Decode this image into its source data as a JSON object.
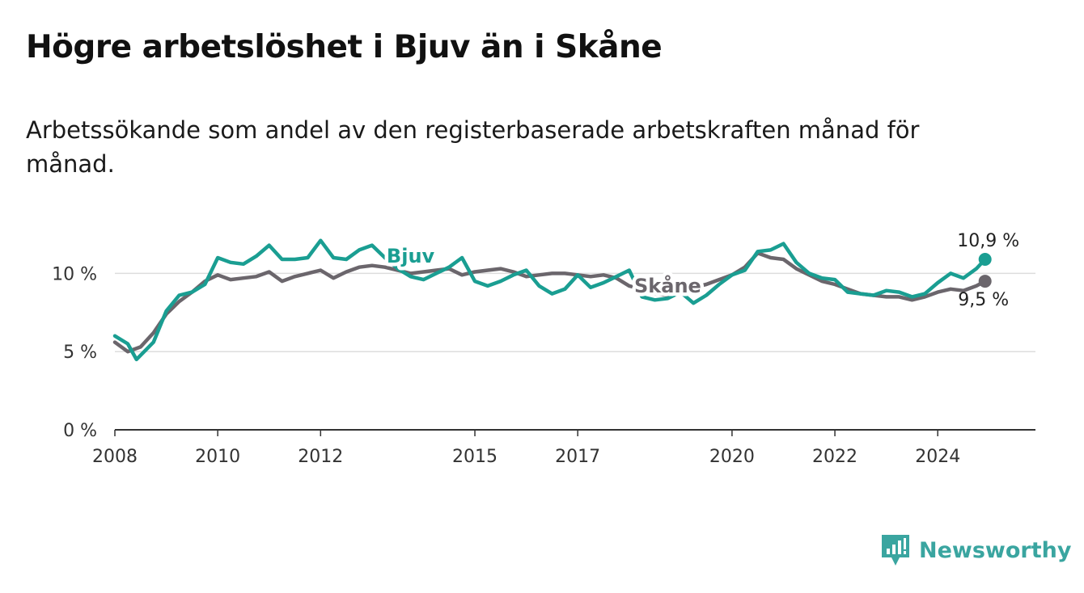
{
  "title": "Högre arbetslöshet i Bjuv än i Skåne",
  "subtitle": "Arbetssökande som andel av den registerbaserade arbetskraften månad för månad.",
  "brand": "Newsworthy",
  "colors": {
    "bjuv": "#1a9e92",
    "skane": "#6b666c",
    "grid": "#dddddd",
    "axis": "#333333",
    "brand": "#3aa5a0"
  },
  "chart_data": {
    "type": "line",
    "x_unit": "year",
    "xlim": [
      2008,
      2025.9
    ],
    "ylim": [
      0,
      12.5
    ],
    "y_ticks": [
      0,
      5,
      10
    ],
    "y_tick_labels": [
      "0 %",
      "5 %",
      "10 %"
    ],
    "x_ticks": [
      2008,
      2010,
      2012,
      2015,
      2017,
      2020,
      2022,
      2024
    ],
    "x_tick_labels": [
      "2008",
      "2010",
      "2012",
      "2015",
      "2017",
      "2020",
      "2022",
      "2024"
    ],
    "grid": true,
    "series": [
      {
        "name": "Skåne",
        "end_label": "9,5 %",
        "x": [
          2008.0,
          2008.25,
          2008.5,
          2008.75,
          2009.0,
          2009.25,
          2009.5,
          2009.75,
          2010.0,
          2010.25,
          2010.5,
          2010.75,
          2011.0,
          2011.25,
          2011.5,
          2011.75,
          2012.0,
          2012.25,
          2012.5,
          2012.75,
          2013.0,
          2013.25,
          2013.5,
          2013.75,
          2014.0,
          2014.25,
          2014.5,
          2014.75,
          2015.0,
          2015.25,
          2015.5,
          2015.75,
          2016.0,
          2016.25,
          2016.5,
          2016.75,
          2017.0,
          2017.25,
          2017.5,
          2017.75,
          2018.0,
          2018.25,
          2018.5,
          2018.75,
          2019.0,
          2019.25,
          2019.5,
          2019.75,
          2020.0,
          2020.25,
          2020.5,
          2020.75,
          2021.0,
          2021.25,
          2021.5,
          2021.75,
          2022.0,
          2022.25,
          2022.5,
          2022.75,
          2023.0,
          2023.25,
          2023.5,
          2023.75,
          2024.0,
          2024.25,
          2024.5,
          2024.75,
          2024.92
        ],
        "values": [
          5.6,
          5.0,
          5.3,
          6.2,
          7.4,
          8.2,
          8.8,
          9.5,
          9.9,
          9.6,
          9.7,
          9.8,
          10.1,
          9.5,
          9.8,
          10.0,
          10.2,
          9.7,
          10.1,
          10.4,
          10.5,
          10.4,
          10.2,
          10.0,
          10.1,
          10.2,
          10.3,
          9.9,
          10.1,
          10.2,
          10.3,
          10.1,
          9.8,
          9.9,
          10.0,
          10.0,
          9.9,
          9.8,
          9.9,
          9.7,
          9.2,
          9.0,
          8.7,
          8.6,
          8.7,
          9.1,
          9.3,
          9.6,
          9.9,
          10.4,
          11.3,
          11.0,
          10.9,
          10.3,
          9.9,
          9.5,
          9.3,
          9.0,
          8.7,
          8.6,
          8.5,
          8.5,
          8.3,
          8.5,
          8.8,
          9.0,
          8.9,
          9.2,
          9.5
        ]
      },
      {
        "name": "Bjuv",
        "end_label": "10,9 %",
        "x": [
          2008.0,
          2008.25,
          2008.42,
          2008.75,
          2009.0,
          2009.25,
          2009.5,
          2009.75,
          2010.0,
          2010.25,
          2010.5,
          2010.75,
          2011.0,
          2011.25,
          2011.5,
          2011.75,
          2012.0,
          2012.25,
          2012.5,
          2012.75,
          2013.0,
          2013.25,
          2013.5,
          2013.75,
          2014.0,
          2014.25,
          2014.5,
          2014.75,
          2015.0,
          2015.25,
          2015.5,
          2015.75,
          2016.0,
          2016.25,
          2016.5,
          2016.75,
          2017.0,
          2017.25,
          2017.5,
          2017.75,
          2018.0,
          2018.25,
          2018.5,
          2018.75,
          2019.0,
          2019.25,
          2019.5,
          2019.75,
          2020.0,
          2020.25,
          2020.5,
          2020.75,
          2021.0,
          2021.25,
          2021.5,
          2021.75,
          2022.0,
          2022.25,
          2022.5,
          2022.75,
          2023.0,
          2023.25,
          2023.5,
          2023.75,
          2024.0,
          2024.25,
          2024.5,
          2024.75,
          2024.92
        ],
        "values": [
          6.0,
          5.5,
          4.5,
          5.6,
          7.6,
          8.6,
          8.8,
          9.3,
          11.0,
          10.7,
          10.6,
          11.1,
          11.8,
          10.9,
          10.9,
          11.0,
          12.1,
          11.0,
          10.9,
          11.5,
          11.8,
          11.0,
          10.3,
          9.8,
          9.6,
          10.0,
          10.4,
          11.0,
          9.5,
          9.2,
          9.5,
          9.9,
          10.2,
          9.2,
          8.7,
          9.0,
          9.9,
          9.1,
          9.4,
          9.8,
          10.2,
          8.5,
          8.3,
          8.4,
          8.8,
          8.1,
          8.6,
          9.3,
          9.9,
          10.2,
          11.4,
          11.5,
          11.9,
          10.7,
          10.0,
          9.7,
          9.6,
          8.8,
          8.7,
          8.6,
          8.9,
          8.8,
          8.5,
          8.7,
          9.4,
          10.0,
          9.7,
          10.3,
          10.9
        ]
      }
    ]
  }
}
